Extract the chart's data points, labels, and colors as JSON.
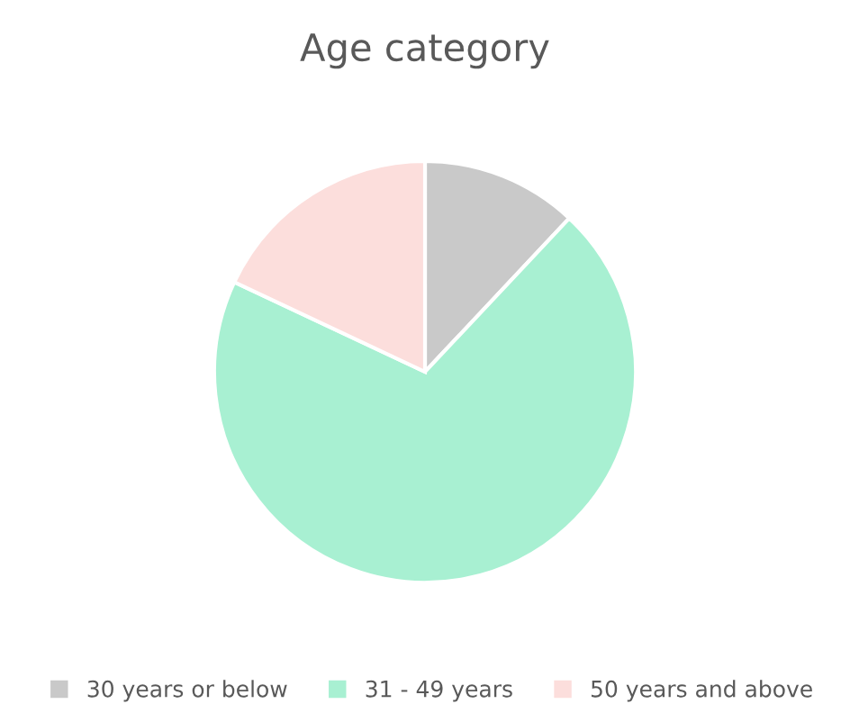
{
  "chart_data": {
    "type": "pie",
    "title": "Age category",
    "categories": [
      "30 years or below",
      "31 - 49 years",
      "50 years and above"
    ],
    "values": [
      12,
      70,
      18
    ],
    "colors": [
      "#c9c9c9",
      "#a8f0d2",
      "#fcdedc"
    ],
    "legend": "bottom"
  }
}
